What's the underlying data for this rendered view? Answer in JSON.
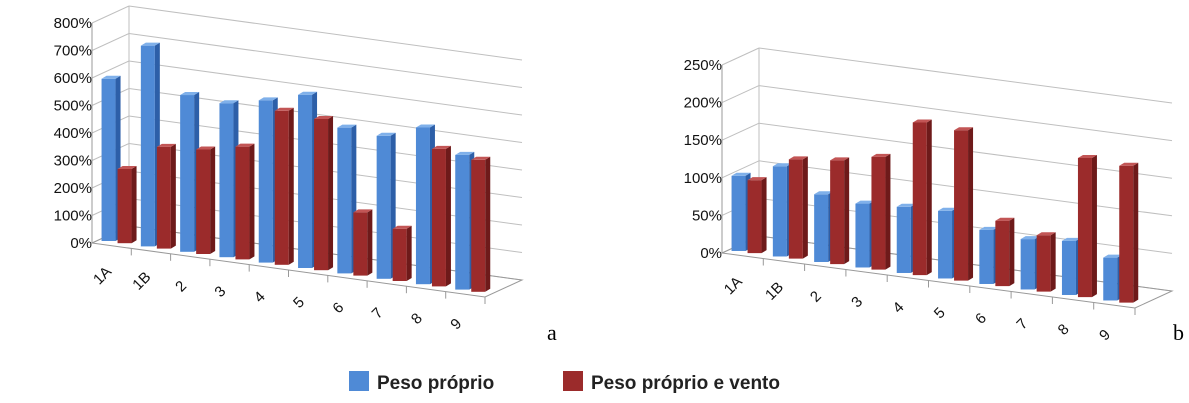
{
  "colors": {
    "series_a": "#4f8ad6",
    "series_a_top": "#7fb0ea",
    "series_a_side": "#2d5fa8",
    "series_b": "#9b2b2b",
    "series_b_top": "#c25555",
    "series_b_side": "#6e1a1a"
  },
  "legend": [
    {
      "name": "Peso próprio"
    },
    {
      "name": "Peso próprio e vento"
    }
  ],
  "chart_data": [
    {
      "type": "bar",
      "panel_label": "a",
      "categories": [
        "1A",
        "1B",
        "2",
        "3",
        "4",
        "5",
        "6",
        "7",
        "8",
        "9"
      ],
      "series": [
        {
          "name": "Peso próprio",
          "values": [
            590,
            730,
            570,
            560,
            590,
            630,
            530,
            520,
            570,
            490
          ]
        },
        {
          "name": "Peso próprio e vento",
          "values": [
            270,
            370,
            380,
            410,
            560,
            550,
            230,
            190,
            500,
            480
          ]
        }
      ],
      "yticks": [
        "0%",
        "100%",
        "200%",
        "300%",
        "400%",
        "500%",
        "600%",
        "700%",
        "800%"
      ],
      "ylim": [
        0,
        800
      ],
      "grid": true
    },
    {
      "type": "bar",
      "panel_label": "b",
      "categories": [
        "1A",
        "1B",
        "2",
        "3",
        "4",
        "5",
        "6",
        "7",
        "8",
        "9"
      ],
      "series": [
        {
          "name": "Peso próprio",
          "values": [
            100,
            120,
            90,
            85,
            88,
            90,
            72,
            67,
            72,
            57
          ]
        },
        {
          "name": "Peso próprio e vento",
          "values": [
            97,
            132,
            138,
            150,
            203,
            200,
            87,
            75,
            185,
            182
          ]
        }
      ],
      "yticks": [
        "0%",
        "50%",
        "100%",
        "150%",
        "200%",
        "250%"
      ],
      "ylim": [
        0,
        250
      ],
      "grid": true
    }
  ]
}
